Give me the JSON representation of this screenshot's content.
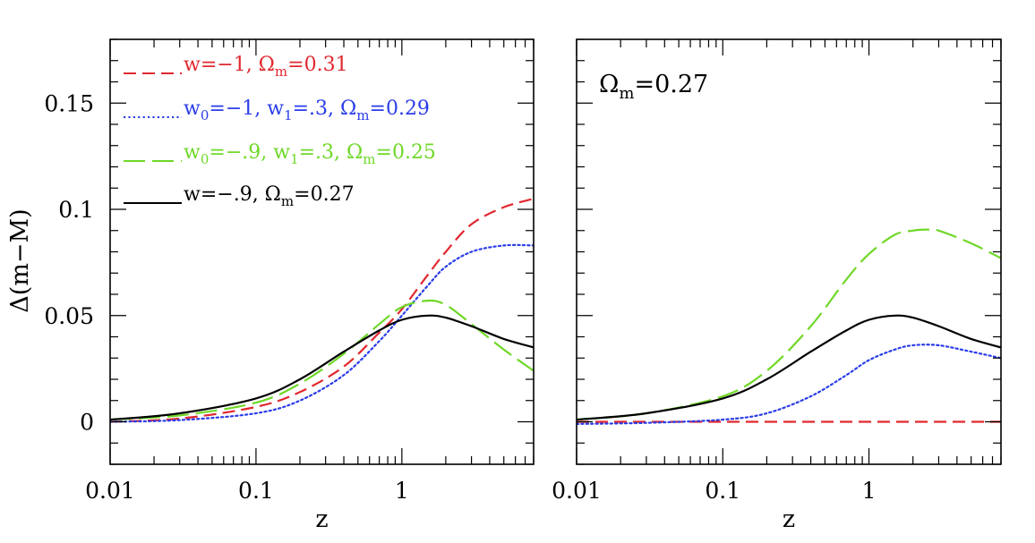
{
  "chart_data": [
    {
      "type": "line",
      "panel": "left",
      "xlabel": "z",
      "ylabel": "Δ(m−M)",
      "xscale": "log",
      "xlim": [
        0.01,
        8
      ],
      "ylim": [
        -0.02,
        0.18
      ],
      "xticks": [
        0.01,
        0.1,
        1
      ],
      "xtick_labels": [
        "0.01",
        "0.1",
        "1"
      ],
      "yticks": [
        0,
        0.05,
        0.1,
        0.15
      ],
      "ytick_labels": [
        "0",
        "0.05",
        "0.1",
        "0.15"
      ],
      "legend_position": "top-left",
      "series": [
        {
          "name": "w=−1, Ωm=0.31",
          "legend": {
            "p1": "w=−1,  Ω",
            "s1": "m",
            "p2": "=0.31",
            "s2": "",
            "p3": "",
            "s3": "",
            "p4": ""
          },
          "color": "#e0282f",
          "style": "dashed",
          "x": [
            0.01,
            0.03,
            0.1,
            0.2,
            0.4,
            0.7,
            1.0,
            1.5,
            2,
            3,
            5,
            8
          ],
          "y": [
            0.0,
            0.0015,
            0.007,
            0.014,
            0.026,
            0.042,
            0.053,
            0.069,
            0.08,
            0.093,
            0.101,
            0.105
          ]
        },
        {
          "name": "w0=−1, w1=.3, Ωm=0.29",
          "legend": {
            "p1": "w",
            "s1": "0",
            "p2": "=−1,  w",
            "s2": "1",
            "p3": "=.3,  Ω",
            "s3": "m",
            "p4": "=0.29"
          },
          "color": "#2a3ce8",
          "style": "dotted",
          "x": [
            0.01,
            0.03,
            0.1,
            0.2,
            0.4,
            0.7,
            1.0,
            1.5,
            2,
            3,
            5,
            8
          ],
          "y": [
            0.0,
            0.0008,
            0.004,
            0.01,
            0.022,
            0.038,
            0.05,
            0.064,
            0.073,
            0.08,
            0.083,
            0.083
          ]
        },
        {
          "name": "w0=−.9, w1=.3, Ωm=0.25",
          "legend": {
            "p1": "w",
            "s1": "0",
            "p2": "=−.9,  w",
            "s2": "1",
            "p3": "=.3,  Ω",
            "s3": "m",
            "p4": "=0.25"
          },
          "color": "#6fd828",
          "style": "long-dashed",
          "x": [
            0.01,
            0.03,
            0.1,
            0.2,
            0.4,
            0.7,
            1.0,
            1.5,
            2,
            3,
            5,
            8
          ],
          "y": [
            0.001,
            0.003,
            0.009,
            0.018,
            0.032,
            0.046,
            0.054,
            0.057,
            0.055,
            0.046,
            0.034,
            0.024
          ]
        },
        {
          "name": "w=−.9, Ωm=0.27",
          "legend": {
            "p1": "w=−.9,  Ω",
            "s1": "m",
            "p2": "=0.27",
            "s2": "",
            "p3": "",
            "s3": "",
            "p4": ""
          },
          "color": "#000000",
          "style": "solid",
          "x": [
            0.01,
            0.03,
            0.1,
            0.2,
            0.4,
            0.7,
            1.0,
            1.5,
            2,
            3,
            5,
            8
          ],
          "y": [
            0.001,
            0.004,
            0.011,
            0.02,
            0.033,
            0.043,
            0.048,
            0.05,
            0.049,
            0.045,
            0.039,
            0.035
          ]
        }
      ]
    },
    {
      "type": "line",
      "panel": "right",
      "xlabel": "z",
      "xscale": "log",
      "xlim": [
        0.01,
        8
      ],
      "ylim": [
        -0.02,
        0.18
      ],
      "xticks": [
        0.01,
        0.1,
        1
      ],
      "xtick_labels": [
        "0.01",
        "0.1",
        "1"
      ],
      "yticks": [
        0,
        0.05,
        0.1,
        0.15
      ],
      "ytick_labels": [],
      "annotation": {
        "p1": "Ω",
        "s1": "m",
        "p2": "=0.27"
      },
      "series": [
        {
          "name": "w=−1, Ωm=0.31",
          "color": "#e0282f",
          "style": "dashed",
          "x": [
            0.01,
            0.1,
            1,
            8
          ],
          "y": [
            0.0,
            0.0,
            0.0,
            0.0
          ]
        },
        {
          "name": "w0=−1, w1=.3, Ωm=0.29",
          "color": "#2a3ce8",
          "style": "dotted",
          "x": [
            0.01,
            0.03,
            0.1,
            0.2,
            0.4,
            0.7,
            1.0,
            1.5,
            2,
            3,
            5,
            8
          ],
          "y": [
            -0.001,
            -0.0005,
            0.001,
            0.004,
            0.012,
            0.022,
            0.029,
            0.034,
            0.036,
            0.036,
            0.033,
            0.03
          ]
        },
        {
          "name": "w0=−.9, w1=.3, Ωm=0.25",
          "color": "#6fd828",
          "style": "long-dashed",
          "x": [
            0.01,
            0.03,
            0.1,
            0.2,
            0.4,
            0.7,
            1.0,
            1.5,
            2,
            2.5,
            3,
            5,
            8
          ],
          "y": [
            0.001,
            0.004,
            0.012,
            0.024,
            0.045,
            0.067,
            0.079,
            0.088,
            0.09,
            0.0905,
            0.09,
            0.084,
            0.077
          ]
        },
        {
          "name": "w=−.9, Ωm=0.27",
          "color": "#000000",
          "style": "solid",
          "x": [
            0.01,
            0.03,
            0.1,
            0.2,
            0.4,
            0.7,
            1.0,
            1.5,
            2,
            3,
            5,
            8
          ],
          "y": [
            0.001,
            0.004,
            0.011,
            0.02,
            0.033,
            0.043,
            0.048,
            0.05,
            0.049,
            0.045,
            0.039,
            0.035
          ]
        }
      ]
    }
  ]
}
